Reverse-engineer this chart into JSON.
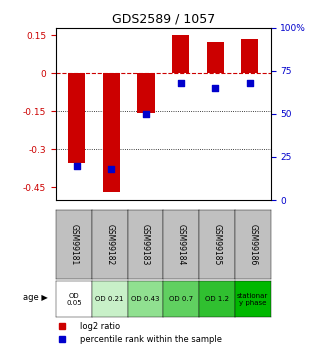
{
  "title": "GDS2589 / 1057",
  "samples": [
    "GSM99181",
    "GSM99182",
    "GSM99183",
    "GSM99184",
    "GSM99185",
    "GSM99186"
  ],
  "log2_ratio": [
    -0.355,
    -0.47,
    -0.155,
    0.15,
    0.125,
    0.135
  ],
  "percentile_rank": [
    20,
    18,
    50,
    68,
    65,
    68
  ],
  "age_labels": [
    "OD\n0.05",
    "OD 0.21",
    "OD 0.43",
    "OD 0.7",
    "OD 1.2",
    "stationar\ny phase"
  ],
  "age_colors": [
    "#ffffff",
    "#c8f0c8",
    "#90e090",
    "#60d060",
    "#30c030",
    "#00b800"
  ],
  "bar_color": "#cc0000",
  "dot_color": "#0000cc",
  "ylim_left": [
    -0.5,
    0.18
  ],
  "yticks_left": [
    0.15,
    0,
    -0.15,
    -0.3,
    -0.45
  ],
  "yticks_right": [
    100,
    75,
    50,
    25,
    0
  ],
  "bar_width": 0.5,
  "legend_items": [
    "log2 ratio",
    "percentile rank within the sample"
  ],
  "legend_colors": [
    "#cc0000",
    "#0000cc"
  ]
}
